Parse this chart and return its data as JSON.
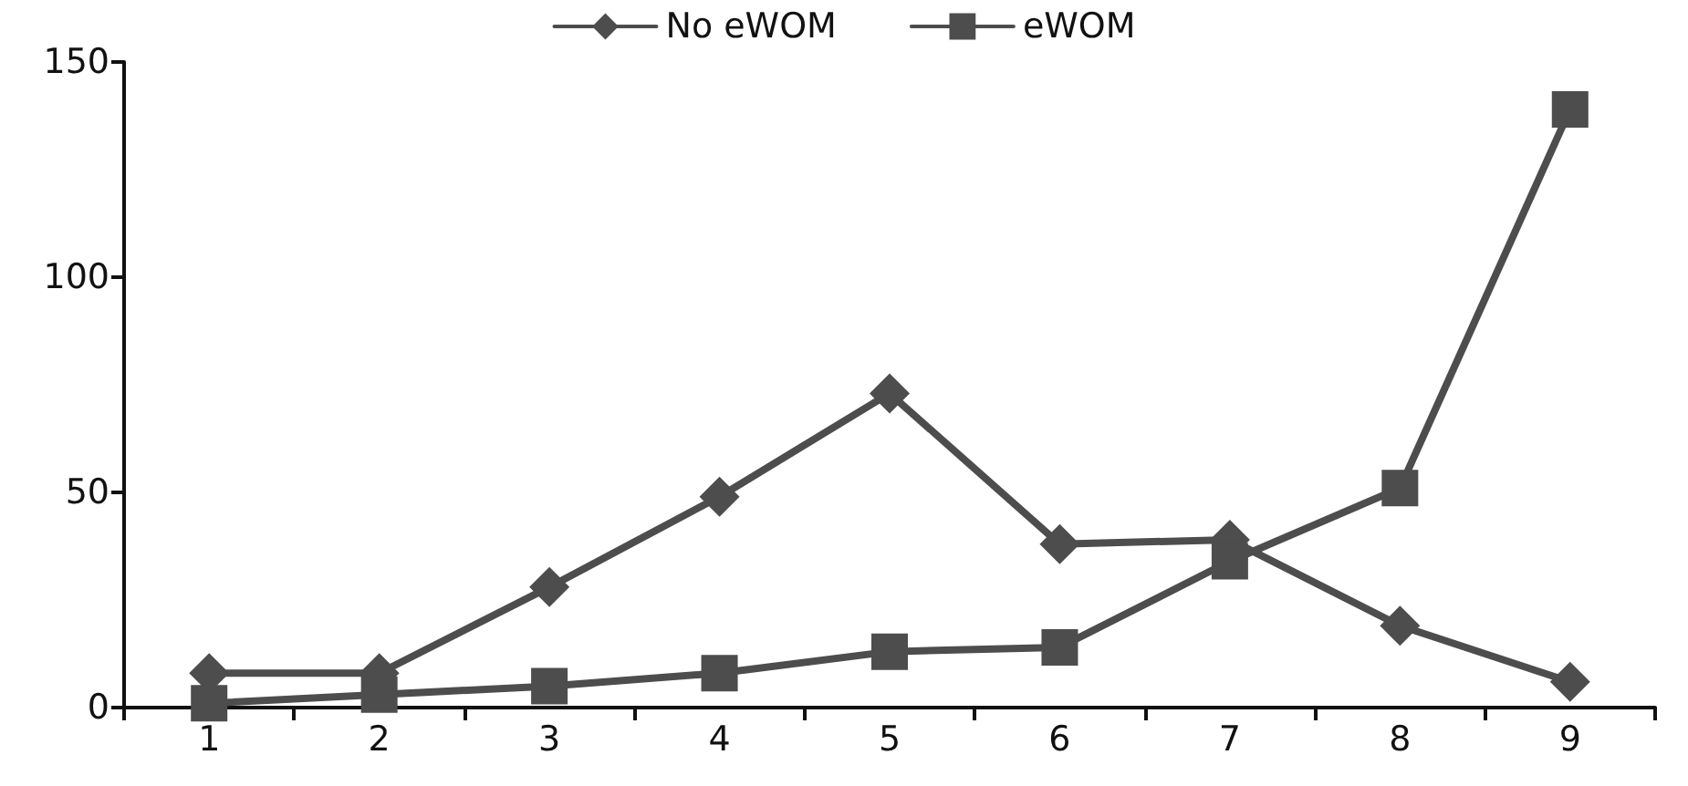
{
  "chart_data": {
    "type": "line",
    "categories": [
      "1",
      "2",
      "3",
      "4",
      "5",
      "6",
      "7",
      "8",
      "9"
    ],
    "series": [
      {
        "name": "No eWOM",
        "color": "#4d4d4d",
        "marker": "diamond",
        "values": [
          8,
          8,
          28,
          49,
          73,
          38,
          39,
          19,
          6
        ]
      },
      {
        "name": "eWOM",
        "color": "#4d4d4d",
        "marker": "square",
        "values": [
          1,
          3,
          5,
          8,
          13,
          14,
          34,
          51,
          139
        ]
      }
    ],
    "ylim": [
      0,
      150
    ],
    "yticks": [
      0,
      50,
      100,
      150
    ],
    "grid": false,
    "legend": "top",
    "line_style": "solid"
  }
}
